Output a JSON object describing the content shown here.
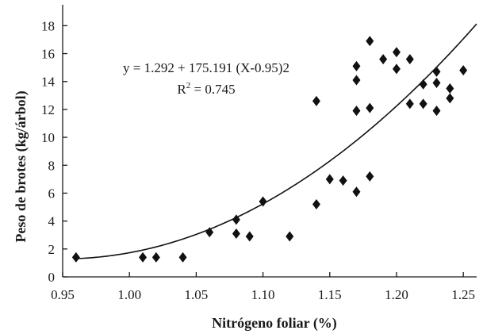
{
  "chart_data": {
    "type": "scatter",
    "xlabel": "Nitrógeno foliar (%)",
    "ylabel": "Peso de brotes (kg/árbol)",
    "xlim": [
      0.95,
      1.26
    ],
    "ylim": [
      0,
      19.5
    ],
    "x_ticks": [
      0.95,
      1.0,
      1.05,
      1.1,
      1.15,
      1.2,
      1.25
    ],
    "x_tick_labels": [
      "0.95",
      "1.00",
      "1.05",
      "1.10",
      "1.15",
      "1.20",
      "1.25"
    ],
    "y_ticks": [
      0,
      2,
      4,
      6,
      8,
      10,
      12,
      14,
      16,
      18
    ],
    "y_tick_labels": [
      "0",
      "2",
      "4",
      "6",
      "8",
      "10",
      "12",
      "14",
      "16",
      "18"
    ],
    "grid": false,
    "marker": "diamond",
    "points": [
      {
        "x": 0.96,
        "y": 1.4
      },
      {
        "x": 1.01,
        "y": 1.4
      },
      {
        "x": 1.02,
        "y": 1.4
      },
      {
        "x": 1.04,
        "y": 1.4
      },
      {
        "x": 1.06,
        "y": 3.2
      },
      {
        "x": 1.08,
        "y": 4.1
      },
      {
        "x": 1.08,
        "y": 3.1
      },
      {
        "x": 1.09,
        "y": 2.9
      },
      {
        "x": 1.1,
        "y": 5.4
      },
      {
        "x": 1.12,
        "y": 2.9
      },
      {
        "x": 1.14,
        "y": 12.6
      },
      {
        "x": 1.14,
        "y": 5.2
      },
      {
        "x": 1.15,
        "y": 7.0
      },
      {
        "x": 1.16,
        "y": 6.9
      },
      {
        "x": 1.17,
        "y": 15.1
      },
      {
        "x": 1.17,
        "y": 14.1
      },
      {
        "x": 1.17,
        "y": 11.9
      },
      {
        "x": 1.17,
        "y": 6.1
      },
      {
        "x": 1.18,
        "y": 16.9
      },
      {
        "x": 1.18,
        "y": 12.1
      },
      {
        "x": 1.18,
        "y": 7.2
      },
      {
        "x": 1.19,
        "y": 15.6
      },
      {
        "x": 1.2,
        "y": 16.1
      },
      {
        "x": 1.2,
        "y": 14.9
      },
      {
        "x": 1.21,
        "y": 15.6
      },
      {
        "x": 1.21,
        "y": 12.4
      },
      {
        "x": 1.22,
        "y": 13.8
      },
      {
        "x": 1.22,
        "y": 12.4
      },
      {
        "x": 1.23,
        "y": 14.7
      },
      {
        "x": 1.23,
        "y": 13.9
      },
      {
        "x": 1.23,
        "y": 11.9
      },
      {
        "x": 1.24,
        "y": 13.5
      },
      {
        "x": 1.24,
        "y": 12.8
      },
      {
        "x": 1.25,
        "y": 14.8
      }
    ],
    "fit": {
      "intercept": 1.292,
      "coefficient": 175.191,
      "x_offset": 0.95,
      "x_range": [
        0.96,
        1.26
      ]
    },
    "annotations": {
      "equation": "y = 1.292 + 175.191 (X-0.95)2",
      "r2_prefix": "R",
      "r2_sup": "2",
      "r2_value": " = 0.745"
    }
  }
}
